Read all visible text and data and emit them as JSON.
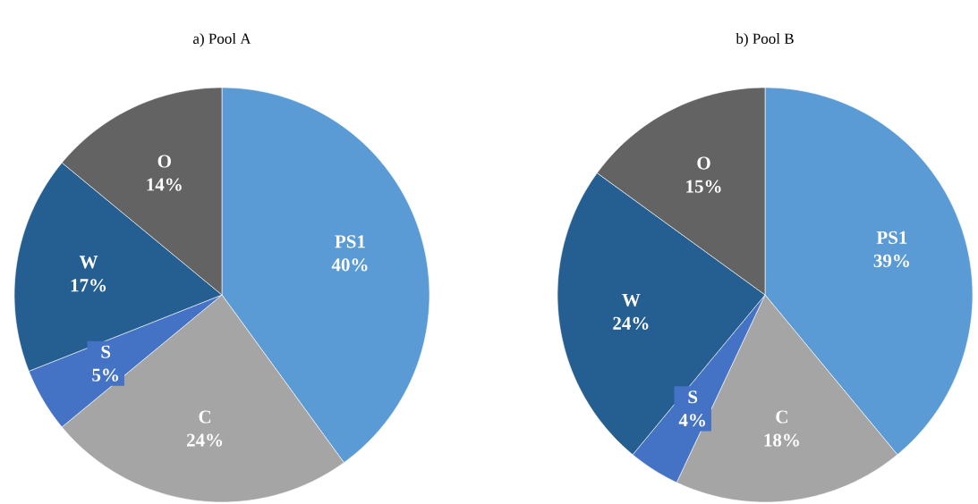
{
  "chart_data": [
    {
      "type": "pie",
      "title": "a) Pool A",
      "categories": [
        "PS1",
        "C",
        "S",
        "W",
        "O"
      ],
      "values": [
        40,
        24,
        5,
        17,
        14
      ],
      "value_labels": [
        "40%",
        "24%",
        "5%",
        "17%",
        "14%"
      ],
      "colors": [
        "#5b9bd5",
        "#a5a5a5",
        "#4472c4",
        "#255e91",
        "#636363"
      ]
    },
    {
      "type": "pie",
      "title": "b) Pool B",
      "categories": [
        "PS1",
        "C",
        "S",
        "W",
        "O"
      ],
      "values": [
        39,
        18,
        4,
        24,
        15
      ],
      "value_labels": [
        "39%",
        "18%",
        "4%",
        "24%",
        "15%"
      ],
      "colors": [
        "#5b9bd5",
        "#a5a5a5",
        "#4472c4",
        "#255e91",
        "#636363"
      ]
    }
  ]
}
